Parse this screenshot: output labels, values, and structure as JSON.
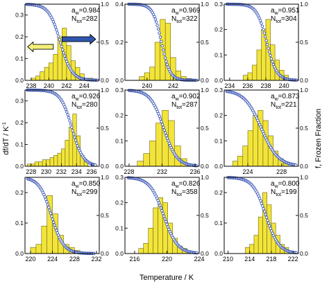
{
  "figure": {
    "xlabel": "Temperature / K",
    "ylabel_left": "df/dT / K",
    "ylabel_left_sup": "-1",
    "ylabel_right": "f, Frozen Fraction",
    "colors": {
      "bars": "#f2e43a",
      "bar_edge": "#6b6414",
      "points": "#3a56b8",
      "arrow_left": "#f5ef7a",
      "arrow_right": "#2f56b0"
    }
  },
  "chart_data": [
    {
      "type": "bar+scatter",
      "aw_prefix": "a",
      "aw_sub": "w",
      "aw_value": "=0.984",
      "ntot_prefix": "N",
      "ntot_sub": "tot",
      "ntot_value": "=282",
      "xlim": [
        237.3,
        245.7
      ],
      "xticks": [
        "238",
        "240",
        "242",
        "244"
      ],
      "xtick_values": [
        238,
        240,
        242,
        244
      ],
      "ylim_left": [
        0,
        0.35
      ],
      "yticks_left": [
        "0.0",
        "0.1",
        "0.2",
        "0.3"
      ],
      "ytick_left_values": [
        0,
        0.1,
        0.2,
        0.3
      ],
      "ylim_right": [
        0,
        1.0
      ],
      "yticks_right": [
        "0.0",
        "0.5",
        "1.0"
      ],
      "ytick_right_values": [
        0,
        0.5,
        1.0
      ],
      "bin_width": 0.5,
      "bins_start": [
        238.0,
        238.5,
        239.0,
        239.5,
        240.0,
        240.5,
        241.0,
        241.5,
        242.0,
        242.5,
        243.0,
        243.5,
        244.0,
        244.5
      ],
      "values": [
        0.01,
        0.02,
        0.04,
        0.06,
        0.08,
        0.12,
        0.2,
        0.24,
        0.16,
        0.09,
        0.06,
        0.03,
        0.01,
        0.01
      ],
      "frozen_fraction": {
        "center": 241.3,
        "width": 0.65,
        "xstart": 237.5,
        "xend": 245.5
      },
      "arrows": [
        {
          "direction": "left",
          "color_key": "arrow_left",
          "x_from": 240.5,
          "x_to": 237.6,
          "y": 0.44
        },
        {
          "direction": "right",
          "color_key": "arrow_right",
          "x_from": 241.5,
          "x_to": 245.3,
          "y": 0.54
        }
      ]
    },
    {
      "type": "bar+scatter",
      "aw_prefix": "a",
      "aw_sub": "w",
      "aw_value": "=0.969",
      "ntot_prefix": "N",
      "ntot_sub": "tot",
      "ntot_value": "=322",
      "xlim": [
        238.3,
        244.0
      ],
      "xticks": [
        "240",
        "242"
      ],
      "xtick_values": [
        240,
        242
      ],
      "ylim_left": [
        0,
        0.4
      ],
      "yticks_left": [
        "0.0",
        "0.2",
        "0.4"
      ],
      "ytick_left_values": [
        0,
        0.2,
        0.4
      ],
      "ylim_right": [
        0,
        1.0
      ],
      "yticks_right": [
        "0.0",
        "0.5",
        "1.0"
      ],
      "ytick_right_values": [
        0,
        0.5,
        1.0
      ],
      "bin_width": 0.4,
      "bins_start": [
        239.4,
        239.8,
        240.2,
        240.6,
        241.0,
        241.4,
        241.8,
        242.2,
        242.6,
        243.0
      ],
      "values": [
        0.02,
        0.04,
        0.07,
        0.2,
        0.32,
        0.3,
        0.12,
        0.05,
        0.02,
        0.01
      ],
      "frozen_fraction": {
        "center": 241.1,
        "width": 0.33,
        "xstart": 238.6,
        "xend": 243.8
      }
    },
    {
      "type": "bar+scatter",
      "aw_prefix": "a",
      "aw_sub": "w",
      "aw_value": "=0.951",
      "ntot_prefix": "N",
      "ntot_sub": "tot",
      "ntot_value": "=304",
      "xlim": [
        233.4,
        241.6
      ],
      "xticks": [
        "234",
        "236",
        "238",
        "240"
      ],
      "xtick_values": [
        234,
        236,
        238,
        240
      ],
      "ylim_left": [
        0,
        0.3
      ],
      "yticks_left": [
        "0.0",
        "0.1",
        "0.2",
        "0.3"
      ],
      "ytick_left_values": [
        0,
        0.1,
        0.2,
        0.3
      ],
      "ylim_right": [
        0,
        1.0
      ],
      "yticks_right": [
        "0.0",
        "0.5",
        "1.0"
      ],
      "ytick_right_values": [
        0,
        0.5,
        1.0
      ],
      "bin_width": 0.5,
      "bins_start": [
        235.5,
        236.0,
        236.5,
        237.0,
        237.5,
        238.0,
        238.5,
        239.0,
        239.5,
        240.0
      ],
      "values": [
        0.02,
        0.03,
        0.06,
        0.12,
        0.2,
        0.24,
        0.14,
        0.08,
        0.04,
        0.02
      ],
      "frozen_fraction": {
        "center": 238.1,
        "width": 0.55,
        "xstart": 233.7,
        "xend": 241.4
      }
    },
    {
      "type": "bar+scatter",
      "aw_prefix": "a",
      "aw_sub": "w",
      "aw_value": "=0.926",
      "ntot_prefix": "N",
      "ntot_sub": "tot",
      "ntot_value": "=280",
      "xlim": [
        227.2,
        237.0
      ],
      "xticks": [
        "228",
        "230",
        "232",
        "234",
        "236"
      ],
      "xtick_values": [
        228,
        230,
        232,
        234,
        236
      ],
      "ylim_left": [
        0,
        0.35
      ],
      "yticks_left": [
        "0.0",
        "0.1",
        "0.2",
        "0.3"
      ],
      "ytick_left_values": [
        0,
        0.1,
        0.2,
        0.3
      ],
      "ylim_right": [
        0,
        1.0
      ],
      "yticks_right": [
        "0.0",
        "0.5",
        "1.0"
      ],
      "ytick_right_values": [
        0,
        0.5,
        1.0
      ],
      "bin_width": 0.5,
      "bins_start": [
        227.5,
        228.0,
        228.5,
        229.0,
        229.5,
        230.0,
        230.5,
        231.0,
        231.5,
        232.0,
        232.5,
        233.0,
        233.5,
        234.0,
        234.5,
        235.0
      ],
      "values": [
        0.01,
        0.01,
        0.02,
        0.02,
        0.03,
        0.03,
        0.04,
        0.05,
        0.06,
        0.08,
        0.12,
        0.18,
        0.24,
        0.14,
        0.05,
        0.02
      ],
      "frozen_fraction": {
        "center": 233.4,
        "width": 0.75,
        "xstart": 227.5,
        "xend": 236.5
      }
    },
    {
      "type": "bar+scatter",
      "aw_prefix": "a",
      "aw_sub": "w",
      "aw_value": "=0.902",
      "ntot_prefix": "N",
      "ntot_sub": "tot",
      "ntot_value": "=287",
      "xlim": [
        227.5,
        236.5
      ],
      "xticks": [
        "228",
        "232",
        "236"
      ],
      "xtick_values": [
        228,
        232,
        236
      ],
      "ylim_left": [
        0,
        0.3
      ],
      "yticks_left": [
        "0.0",
        "0.1",
        "0.2",
        "0.3"
      ],
      "ytick_left_values": [
        0,
        0.1,
        0.2,
        0.3
      ],
      "ylim_right": [
        0,
        1.0
      ],
      "yticks_right": [
        "0.0",
        "0.5",
        "1.0"
      ],
      "ytick_right_values": [
        0,
        0.5,
        1.0
      ],
      "bin_width": 0.75,
      "bins_start": [
        229.0,
        229.75,
        230.5,
        231.25,
        232.0,
        232.75,
        233.5,
        234.25
      ],
      "values": [
        0.02,
        0.05,
        0.1,
        0.17,
        0.22,
        0.18,
        0.08,
        0.03
      ],
      "frozen_fraction": {
        "center": 232.2,
        "width": 0.8,
        "xstart": 228.0,
        "xend": 236.2
      }
    },
    {
      "type": "bar+scatter",
      "aw_prefix": "a",
      "aw_sub": "w",
      "aw_value": "=0.873",
      "ntot_prefix": "N",
      "ntot_sub": "tot",
      "ntot_value": "=221",
      "xlim": [
        221.2,
        230.0
      ],
      "xticks": [
        "224",
        "228"
      ],
      "xtick_values": [
        224,
        228
      ],
      "ylim_left": [
        0,
        0.3
      ],
      "yticks_left": [
        "0.0",
        "0.1",
        "0.2",
        "0.3"
      ],
      "ytick_left_values": [
        0,
        0.1,
        0.2,
        0.3
      ],
      "ylim_right": [
        0,
        1.0
      ],
      "yticks_right": [
        "0.0",
        "0.5",
        "1.0"
      ],
      "ytick_right_values": [
        0,
        0.5,
        1.0
      ],
      "bin_width": 0.6,
      "bins_start": [
        222.2,
        222.8,
        223.4,
        224.0,
        224.6,
        225.2,
        225.8,
        226.4,
        227.0,
        227.6,
        228.2
      ],
      "values": [
        0.02,
        0.04,
        0.08,
        0.14,
        0.2,
        0.22,
        0.18,
        0.12,
        0.06,
        0.03,
        0.01
      ],
      "frozen_fraction": {
        "center": 225.6,
        "width": 1.0,
        "xstart": 221.5,
        "xend": 229.7
      }
    },
    {
      "type": "bar+scatter",
      "aw_prefix": "a",
      "aw_sub": "w",
      "aw_value": "=0.850",
      "ntot_prefix": "N",
      "ntot_sub": "tot",
      "ntot_value": "=299",
      "xlim": [
        219.0,
        232.5
      ],
      "xticks": [
        "220",
        "224",
        "228",
        "232"
      ],
      "xtick_values": [
        220,
        224,
        228,
        232
      ],
      "ylim_left": [
        0,
        0.25
      ],
      "yticks_left": [
        "0.0",
        "0.1",
        "0.2"
      ],
      "ytick_left_values": [
        0,
        0.1,
        0.2
      ],
      "ylim_right": [
        0,
        1.0
      ],
      "yticks_right": [
        "0.0",
        "0.5",
        "1.0"
      ],
      "ytick_right_values": [
        0,
        0.5,
        1.0
      ],
      "bin_width": 1.0,
      "bins_start": [
        220.0,
        221.0,
        222.0,
        223.0,
        224.0,
        225.0,
        226.0,
        227.0,
        228.0
      ],
      "values": [
        0.02,
        0.03,
        0.09,
        0.19,
        0.13,
        0.06,
        0.03,
        0.02,
        0.01
      ],
      "frozen_fraction": {
        "center": 223.8,
        "width": 1.1,
        "xstart": 219.5,
        "xend": 231.5
      }
    },
    {
      "type": "bar+scatter",
      "aw_prefix": "a",
      "aw_sub": "w",
      "aw_value": "=0.826",
      "ntot_prefix": "N",
      "ntot_sub": "tot",
      "ntot_value": "=358",
      "xlim": [
        214.8,
        224.0
      ],
      "xticks": [
        "216",
        "220",
        "224"
      ],
      "xtick_values": [
        216,
        220,
        224
      ],
      "ylim_left": [
        0,
        0.3
      ],
      "yticks_left": [
        "0.0",
        "0.1",
        "0.2",
        "0.3"
      ],
      "ytick_left_values": [
        0,
        0.1,
        0.2,
        0.3
      ],
      "ylim_right": [
        0,
        1.0
      ],
      "yticks_right": [
        "0.0",
        "0.5",
        "1.0"
      ],
      "ytick_right_values": [
        0,
        0.5,
        1.0
      ],
      "bin_width": 0.6,
      "bins_start": [
        216.5,
        217.1,
        217.7,
        218.3,
        218.9,
        219.5,
        220.1,
        220.7,
        221.3,
        221.9,
        222.5
      ],
      "values": [
        0.02,
        0.04,
        0.1,
        0.18,
        0.22,
        0.2,
        0.12,
        0.06,
        0.03,
        0.02,
        0.01
      ],
      "frozen_fraction": {
        "center": 219.6,
        "width": 0.85,
        "xstart": 215.2,
        "xend": 223.7
      }
    },
    {
      "type": "bar+scatter",
      "aw_prefix": "a",
      "aw_sub": "w",
      "aw_value": "=0.800",
      "ntot_prefix": "N",
      "ntot_sub": "tot",
      "ntot_value": "=199",
      "xlim": [
        209.3,
        223.0
      ],
      "xticks": [
        "210",
        "214",
        "218",
        "222"
      ],
      "xtick_values": [
        210,
        214,
        218,
        222
      ],
      "ylim_left": [
        0,
        0.25
      ],
      "yticks_left": [
        "0.0",
        "0.1",
        "0.2"
      ],
      "ytick_left_values": [
        0,
        0.1,
        0.2
      ],
      "ylim_right": [
        0,
        1.0
      ],
      "yticks_right": [
        "0.0",
        "0.5",
        "1.0"
      ],
      "ytick_right_values": [
        0,
        0.5,
        1.0
      ],
      "bin_width": 0.8,
      "bins_start": [
        213.2,
        214.0,
        214.8,
        215.6,
        216.4,
        217.2,
        218.0,
        218.8,
        219.6,
        220.4
      ],
      "values": [
        0.02,
        0.03,
        0.06,
        0.12,
        0.2,
        0.16,
        0.1,
        0.06,
        0.03,
        0.02
      ],
      "frozen_fraction": {
        "center": 217.0,
        "width": 1.2,
        "xstart": 210.0,
        "xend": 222.6
      }
    }
  ]
}
